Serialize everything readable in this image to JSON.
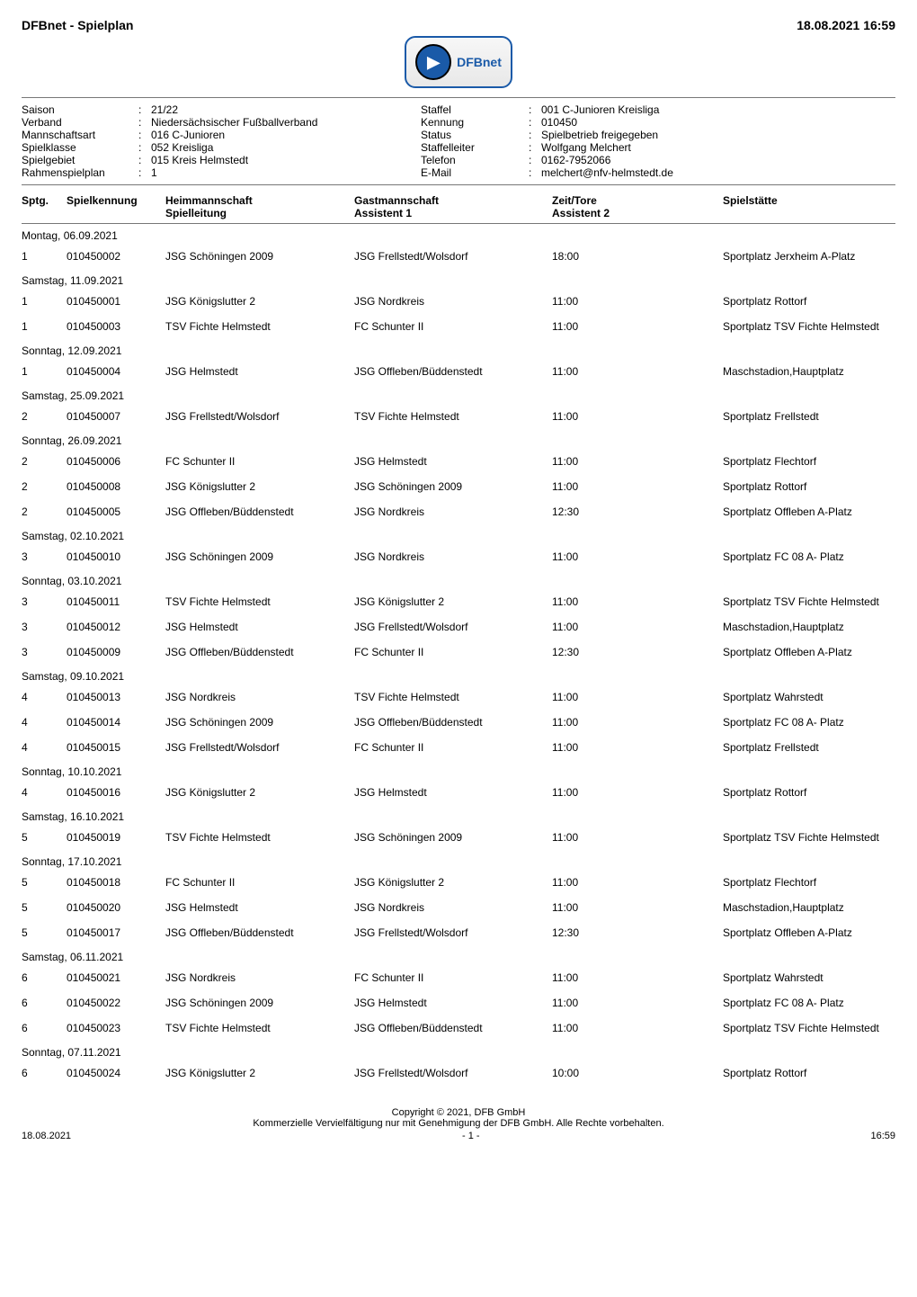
{
  "header": {
    "title": "DFBnet - Spielplan",
    "datetime": "18.08.2021 16:59",
    "logo_text": "DFBnet"
  },
  "meta": {
    "rows": [
      {
        "l1": "Saison",
        "v1": "21/22",
        "l2": "Staffel",
        "v2": "001 C-Junioren Kreisliga"
      },
      {
        "l1": "Verband",
        "v1": "Niedersächsischer Fußballverband",
        "l2": "Kennung",
        "v2": "010450"
      },
      {
        "l1": "Mannschaftsart",
        "v1": "016 C-Junioren",
        "l2": "Status",
        "v2": "Spielbetrieb freigegeben"
      },
      {
        "l1": "Spielklasse",
        "v1": "052 Kreisliga",
        "l2": "Staffelleiter",
        "v2": "Wolfgang Melchert"
      },
      {
        "l1": "Spielgebiet",
        "v1": "015 Kreis Helmstedt",
        "l2": "Telefon",
        "v2": "0162-7952066"
      },
      {
        "l1": "Rahmenspielplan",
        "v1": "1",
        "l2": "E-Mail",
        "v2": "melchert@nfv-helmstedt.de"
      }
    ]
  },
  "columns": {
    "sptg": "Sptg.",
    "spielkennung": "Spielkennung",
    "heim1": "Heimmannschaft",
    "heim2": "Spielleitung",
    "gast1": "Gastmannschaft",
    "gast2": "Assistent 1",
    "zeit1": "Zeit/Tore",
    "zeit2": "Assistent 2",
    "spielstaette": "Spielstätte"
  },
  "groups": [
    {
      "date": "Montag, 06.09.2021",
      "matches": [
        {
          "sptg": "1",
          "kenn": "010450002",
          "heim": "JSG Schöningen 2009",
          "gast": "JSG Frellstedt/Wolsdorf",
          "zeit": "18:00",
          "stadt": "Sportplatz Jerxheim A-Platz"
        }
      ]
    },
    {
      "date": "Samstag, 11.09.2021",
      "matches": [
        {
          "sptg": "1",
          "kenn": "010450001",
          "heim": "JSG Königslutter 2",
          "gast": "JSG Nordkreis",
          "zeit": "11:00",
          "stadt": "Sportplatz Rottorf"
        },
        {
          "sptg": "1",
          "kenn": "010450003",
          "heim": "TSV Fichte Helmstedt",
          "gast": "FC Schunter II",
          "zeit": "11:00",
          "stadt": "Sportplatz TSV Fichte Helmstedt"
        }
      ]
    },
    {
      "date": "Sonntag, 12.09.2021",
      "matches": [
        {
          "sptg": "1",
          "kenn": "010450004",
          "heim": "JSG Helmstedt",
          "gast": "JSG Offleben/Büddenstedt",
          "zeit": "11:00",
          "stadt": "Maschstadion,Hauptplatz"
        }
      ]
    },
    {
      "date": "Samstag, 25.09.2021",
      "matches": [
        {
          "sptg": "2",
          "kenn": "010450007",
          "heim": "JSG Frellstedt/Wolsdorf",
          "gast": "TSV Fichte Helmstedt",
          "zeit": "11:00",
          "stadt": "Sportplatz Frellstedt"
        }
      ]
    },
    {
      "date": "Sonntag, 26.09.2021",
      "matches": [
        {
          "sptg": "2",
          "kenn": "010450006",
          "heim": "FC Schunter II",
          "gast": "JSG Helmstedt",
          "zeit": "11:00",
          "stadt": "Sportplatz Flechtorf"
        },
        {
          "sptg": "2",
          "kenn": "010450008",
          "heim": "JSG Königslutter 2",
          "gast": "JSG Schöningen 2009",
          "zeit": "11:00",
          "stadt": "Sportplatz Rottorf"
        },
        {
          "sptg": "2",
          "kenn": "010450005",
          "heim": "JSG Offleben/Büddenstedt",
          "gast": "JSG Nordkreis",
          "zeit": "12:30",
          "stadt": "Sportplatz Offleben A-Platz"
        }
      ]
    },
    {
      "date": "Samstag, 02.10.2021",
      "matches": [
        {
          "sptg": "3",
          "kenn": "010450010",
          "heim": "JSG Schöningen 2009",
          "gast": "JSG Nordkreis",
          "zeit": "11:00",
          "stadt": "Sportplatz FC 08 A- Platz"
        }
      ]
    },
    {
      "date": "Sonntag, 03.10.2021",
      "matches": [
        {
          "sptg": "3",
          "kenn": "010450011",
          "heim": "TSV Fichte Helmstedt",
          "gast": "JSG Königslutter 2",
          "zeit": "11:00",
          "stadt": "Sportplatz TSV Fichte Helmstedt"
        },
        {
          "sptg": "3",
          "kenn": "010450012",
          "heim": "JSG Helmstedt",
          "gast": "JSG Frellstedt/Wolsdorf",
          "zeit": "11:00",
          "stadt": "Maschstadion,Hauptplatz"
        },
        {
          "sptg": "3",
          "kenn": "010450009",
          "heim": "JSG Offleben/Büddenstedt",
          "gast": "FC Schunter II",
          "zeit": "12:30",
          "stadt": "Sportplatz Offleben A-Platz"
        }
      ]
    },
    {
      "date": "Samstag, 09.10.2021",
      "matches": [
        {
          "sptg": "4",
          "kenn": "010450013",
          "heim": "JSG Nordkreis",
          "gast": "TSV Fichte Helmstedt",
          "zeit": "11:00",
          "stadt": "Sportplatz Wahrstedt"
        },
        {
          "sptg": "4",
          "kenn": "010450014",
          "heim": "JSG Schöningen 2009",
          "gast": "JSG Offleben/Büddenstedt",
          "zeit": "11:00",
          "stadt": "Sportplatz FC 08 A- Platz"
        },
        {
          "sptg": "4",
          "kenn": "010450015",
          "heim": "JSG Frellstedt/Wolsdorf",
          "gast": "FC Schunter II",
          "zeit": "11:00",
          "stadt": "Sportplatz Frellstedt"
        }
      ]
    },
    {
      "date": "Sonntag, 10.10.2021",
      "matches": [
        {
          "sptg": "4",
          "kenn": "010450016",
          "heim": "JSG Königslutter 2",
          "gast": "JSG Helmstedt",
          "zeit": "11:00",
          "stadt": "Sportplatz Rottorf"
        }
      ]
    },
    {
      "date": "Samstag, 16.10.2021",
      "matches": [
        {
          "sptg": "5",
          "kenn": "010450019",
          "heim": "TSV Fichte Helmstedt",
          "gast": "JSG Schöningen 2009",
          "zeit": "11:00",
          "stadt": "Sportplatz TSV Fichte Helmstedt"
        }
      ]
    },
    {
      "date": "Sonntag, 17.10.2021",
      "matches": [
        {
          "sptg": "5",
          "kenn": "010450018",
          "heim": "FC Schunter II",
          "gast": "JSG Königslutter 2",
          "zeit": "11:00",
          "stadt": "Sportplatz Flechtorf"
        },
        {
          "sptg": "5",
          "kenn": "010450020",
          "heim": "JSG Helmstedt",
          "gast": "JSG Nordkreis",
          "zeit": "11:00",
          "stadt": "Maschstadion,Hauptplatz"
        },
        {
          "sptg": "5",
          "kenn": "010450017",
          "heim": "JSG Offleben/Büddenstedt",
          "gast": "JSG Frellstedt/Wolsdorf",
          "zeit": "12:30",
          "stadt": "Sportplatz Offleben A-Platz"
        }
      ]
    },
    {
      "date": "Samstag, 06.11.2021",
      "matches": [
        {
          "sptg": "6",
          "kenn": "010450021",
          "heim": "JSG Nordkreis",
          "gast": "FC Schunter II",
          "zeit": "11:00",
          "stadt": "Sportplatz Wahrstedt"
        },
        {
          "sptg": "6",
          "kenn": "010450022",
          "heim": "JSG Schöningen 2009",
          "gast": "JSG Helmstedt",
          "zeit": "11:00",
          "stadt": "Sportplatz FC 08 A- Platz"
        },
        {
          "sptg": "6",
          "kenn": "010450023",
          "heim": "TSV Fichte Helmstedt",
          "gast": "JSG Offleben/Büddenstedt",
          "zeit": "11:00",
          "stadt": "Sportplatz TSV Fichte Helmstedt"
        }
      ]
    },
    {
      "date": "Sonntag, 07.11.2021",
      "matches": [
        {
          "sptg": "6",
          "kenn": "010450024",
          "heim": "JSG Königslutter 2",
          "gast": "JSG Frellstedt/Wolsdorf",
          "zeit": "10:00",
          "stadt": "Sportplatz Rottorf"
        }
      ]
    }
  ],
  "footer": {
    "copyright": "Copyright © 2021,  DFB GmbH",
    "notice": "Kommerzielle Vervielfältigung nur mit Genehmigung der DFB GmbH. Alle Rechte vorbehalten.",
    "left": "18.08.2021",
    "center": "- 1 -",
    "right": "16:59"
  }
}
